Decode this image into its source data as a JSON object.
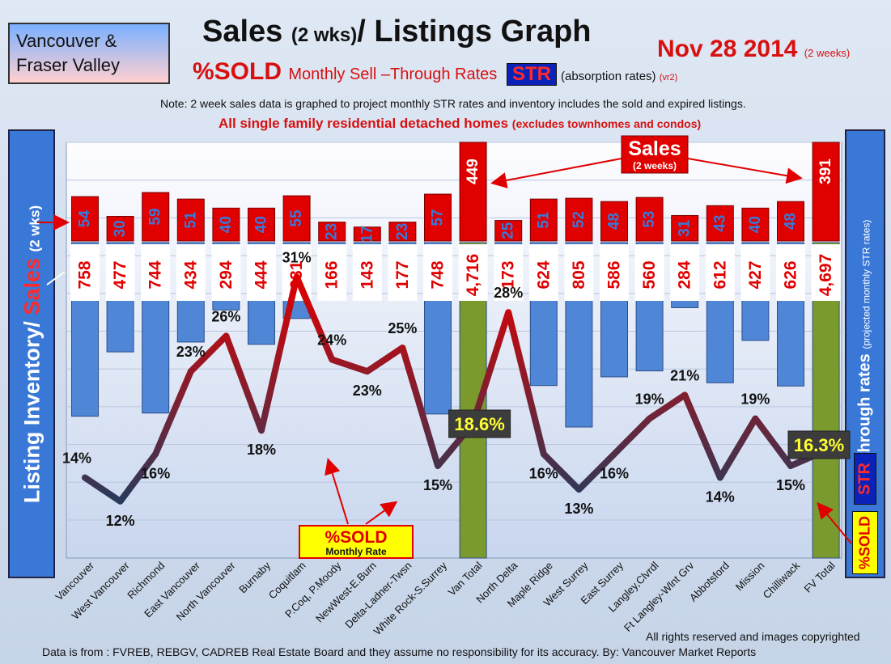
{
  "region": {
    "line1": "Vancouver &",
    "line2": "Fraser Valley"
  },
  "title": {
    "main": "Sales ",
    "paren": "(2 wks)",
    "rest": "/ Listings Graph"
  },
  "date": {
    "main": "Nov 28 2014",
    "sub": "(2 weeks)"
  },
  "subtitle": {
    "sold": "%SOLD",
    "rest": "Monthly Sell –Through Rates",
    "str": "STR",
    "absorption": "(absorption rates)",
    "version": "(vr2)"
  },
  "note": "Note: 2 week sales data is graphed to project monthly STR rates and inventory includes the sold and expired listings.",
  "note2": {
    "main": "All single family residential detached homes",
    "paren": "(excludes townhomes and condos)"
  },
  "left_axis": {
    "inventory": "Listing Inventory/",
    "sales": "Sales",
    "paren": "(2 wks)"
  },
  "right_axis": {
    "label": "Sell-through rates",
    "paren": "(projected monthly STR rates)"
  },
  "str_badge": "STR",
  "sold_badge": "%SOLD",
  "annotations": {
    "sales": {
      "title": "Sales",
      "sub": "(2 weeks)"
    },
    "sold_rate": {
      "title": "%SOLD",
      "sub": "Monthly Rate"
    },
    "van_total": "18.6%",
    "fv_total": "16.3%"
  },
  "footer": {
    "rights": "All rights reserved and images copyrighted",
    "source": "Data is from : FVREB, REBGV, CADREB Real Estate Board and they assume no responsibility for its accuracy. By: Vancouver Market Reports"
  },
  "colors": {
    "inventory": "#4f86d6",
    "sales": "#e00000",
    "total": "#7a9a2e",
    "line_high": "#e00000",
    "line_low": "#2a3a5a"
  },
  "chart_data": {
    "type": "bar",
    "categories": [
      "Vancouver",
      "West Vancouver",
      "Richmond",
      "East Vancouver",
      "North Vancouver",
      "Burnaby",
      "Coquitlam",
      "P.Coq, P.Moody",
      "NewWest-E.Burn",
      "Delta-Ladner-Twsn",
      "White Rock-S.Surrey",
      "Van Total",
      "North Delta",
      "Maple Ridge",
      "West Surrey",
      "East Surrey",
      "Langley,Clvrdl",
      "Ft Langley-Wlnt Grv",
      "Abbotsford",
      "Mission",
      "Chilliwack",
      "FV Total"
    ],
    "series": [
      {
        "name": "Listing Inventory",
        "values": [
          758,
          477,
          744,
          434,
          294,
          444,
          331,
          166,
          143,
          177,
          748,
          4716,
          173,
          624,
          805,
          586,
          560,
          284,
          612,
          427,
          626,
          4697
        ],
        "labels": [
          "758",
          "477",
          "744",
          "434",
          "294",
          "444",
          "331",
          "166",
          "143",
          "177",
          "748",
          "4,716",
          "173",
          "624",
          "805",
          "586",
          "560",
          "284",
          "612",
          "427",
          "626",
          "4,697"
        ]
      },
      {
        "name": "Sales (2 wks)",
        "values": [
          54,
          30,
          59,
          51,
          40,
          40,
          55,
          23,
          17,
          23,
          57,
          449,
          25,
          51,
          52,
          48,
          53,
          31,
          43,
          40,
          48,
          391
        ]
      },
      {
        "name": "%SOLD Monthly Rate",
        "values": [
          14,
          12,
          16,
          23,
          26,
          18,
          31,
          24,
          23,
          25,
          15,
          18.6,
          28,
          16,
          13,
          16,
          19,
          21,
          14,
          19,
          15,
          16.3
        ],
        "labels": [
          "14%",
          "12%",
          "16%",
          "23%",
          "26%",
          "18%",
          "31%",
          "24%",
          "23%",
          "25%",
          "15%",
          "",
          "28%",
          "16%",
          "13%",
          "16%",
          "19%",
          "21%",
          "14%",
          "19%",
          "15%",
          ""
        ]
      }
    ],
    "total_categories": [
      "Van Total",
      "FV Total"
    ],
    "grid": true
  }
}
